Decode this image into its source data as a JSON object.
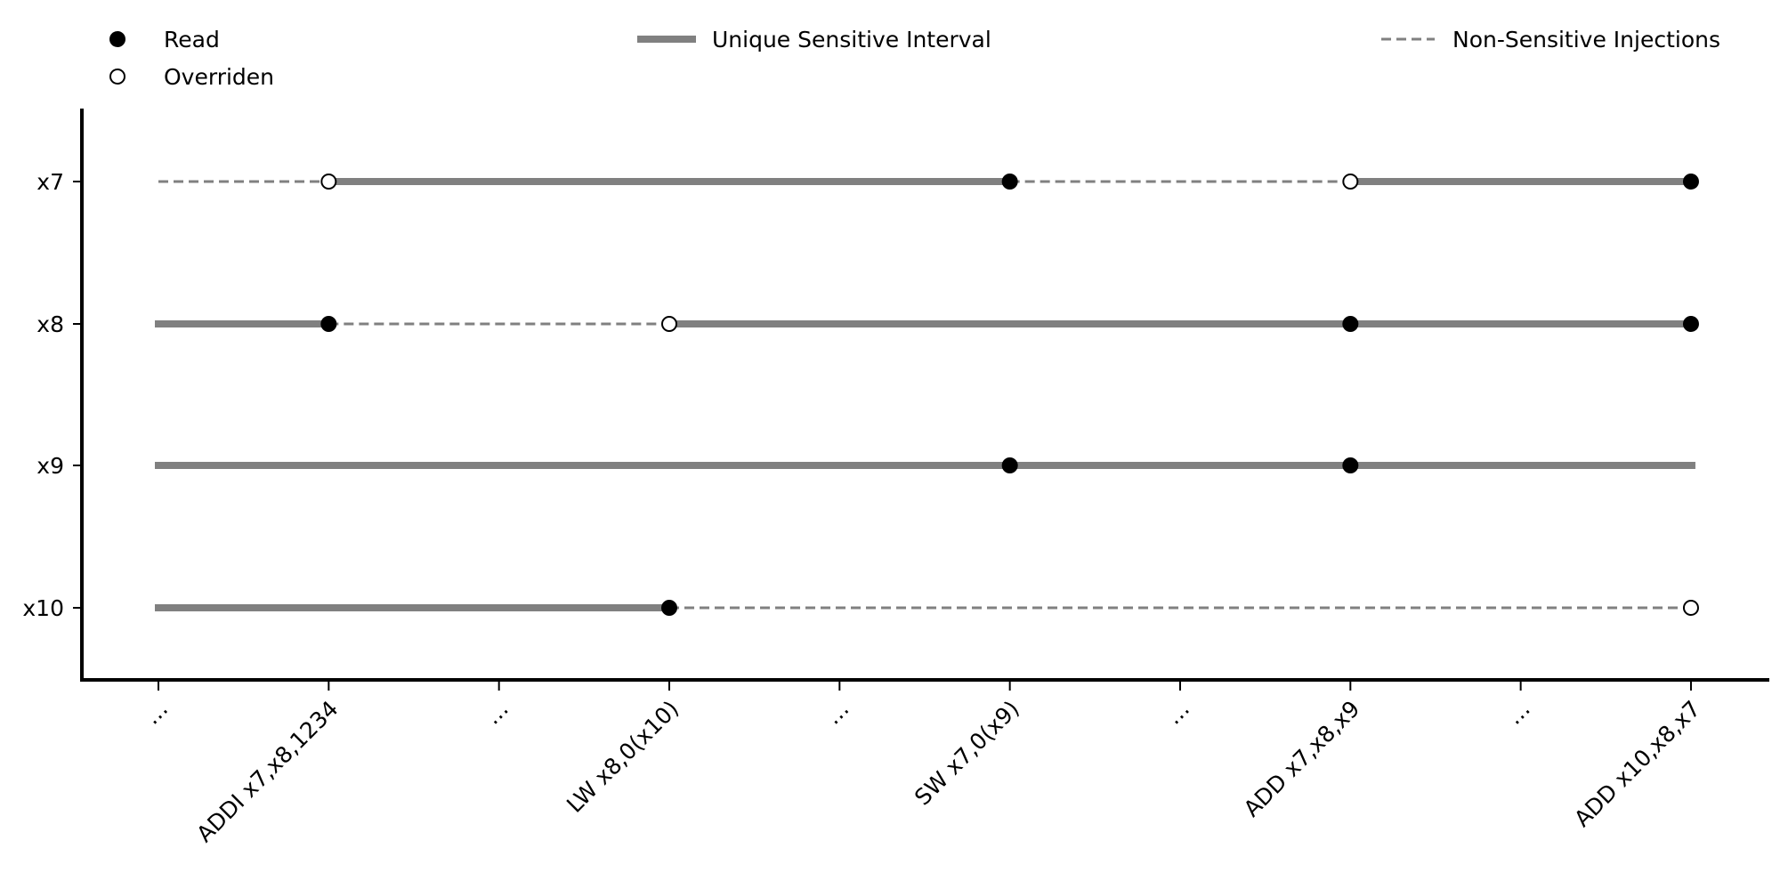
{
  "chart_data": {
    "type": "timeline",
    "x_ticks": [
      "…",
      "ADDI x7,x8,1234",
      "…",
      "LW x8,0(x10)",
      "…",
      "SW x7,0(x9)",
      "…",
      "ADD x7,x8,x9",
      "…",
      "ADD x10,x8,x7"
    ],
    "y_categories": [
      "x7",
      "x8",
      "x9",
      "x10"
    ],
    "x_range": [
      0,
      9
    ],
    "segments": [
      {
        "row": "x7",
        "start": 0,
        "end": 1,
        "kind": "non-sensitive"
      },
      {
        "row": "x7",
        "start": 1,
        "end": 5,
        "kind": "sensitive"
      },
      {
        "row": "x7",
        "start": 5,
        "end": 7,
        "kind": "non-sensitive"
      },
      {
        "row": "x7",
        "start": 7,
        "end": 9,
        "kind": "sensitive"
      },
      {
        "row": "x8",
        "start": 0,
        "end": 1,
        "kind": "sensitive"
      },
      {
        "row": "x8",
        "start": 1,
        "end": 3,
        "kind": "non-sensitive"
      },
      {
        "row": "x8",
        "start": 3,
        "end": 9,
        "kind": "sensitive"
      },
      {
        "row": "x9",
        "start": 0,
        "end": 9,
        "kind": "sensitive"
      },
      {
        "row": "x10",
        "start": 0,
        "end": 3,
        "kind": "sensitive"
      },
      {
        "row": "x10",
        "start": 3,
        "end": 9,
        "kind": "non-sensitive"
      }
    ],
    "points": [
      {
        "row": "x7",
        "x": 1,
        "kind": "overriden"
      },
      {
        "row": "x7",
        "x": 5,
        "kind": "read"
      },
      {
        "row": "x7",
        "x": 7,
        "kind": "overriden"
      },
      {
        "row": "x7",
        "x": 9,
        "kind": "read"
      },
      {
        "row": "x8",
        "x": 1,
        "kind": "read"
      },
      {
        "row": "x8",
        "x": 3,
        "kind": "overriden"
      },
      {
        "row": "x8",
        "x": 7,
        "kind": "read"
      },
      {
        "row": "x8",
        "x": 9,
        "kind": "read"
      },
      {
        "row": "x9",
        "x": 5,
        "kind": "read"
      },
      {
        "row": "x9",
        "x": 7,
        "kind": "read"
      },
      {
        "row": "x10",
        "x": 3,
        "kind": "read"
      },
      {
        "row": "x10",
        "x": 9,
        "kind": "overriden"
      }
    ],
    "legend": {
      "read": "Read",
      "overriden": "Overriden",
      "sensitive": "Unique Sensitive Interval",
      "non_sensitive": "Non-Sensitive Injections"
    },
    "colors": {
      "line": "#808080",
      "marker": "#000000",
      "open_marker_fill": "#ffffff"
    },
    "grid": false
  }
}
